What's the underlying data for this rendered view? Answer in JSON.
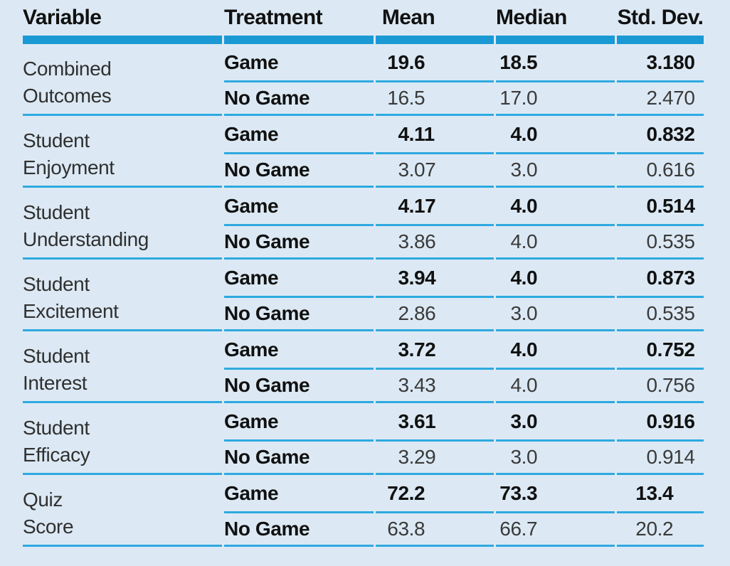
{
  "colors": {
    "background": "#dce9f4",
    "header_bar": "#1a99d5",
    "row_line": "#2ea9e0",
    "text_dark": "#111111",
    "text_regular": "#3a3a3a"
  },
  "chart_data": {
    "type": "table",
    "title": "",
    "columns": [
      "Variable",
      "Treatment",
      "Mean",
      "Median",
      "Std. Dev."
    ],
    "groups": [
      {
        "variable": "Combined Outcomes",
        "lines": [
          "Combined",
          "Outcomes"
        ],
        "game": {
          "treatment": "Game",
          "mean": "19.6",
          "median": "18.5",
          "std_dev": "3.180"
        },
        "no_game": {
          "treatment": "No Game",
          "mean": "16.5",
          "median": "17.0",
          "std_dev": "2.470"
        }
      },
      {
        "variable": "Student Enjoyment",
        "lines": [
          "Student",
          "Enjoyment"
        ],
        "game": {
          "treatment": "Game",
          "mean": "4.11",
          "median": "4.0",
          "std_dev": "0.832"
        },
        "no_game": {
          "treatment": "No Game",
          "mean": "3.07",
          "median": "3.0",
          "std_dev": "0.616"
        }
      },
      {
        "variable": "Student Understanding",
        "lines": [
          "Student",
          "Understanding"
        ],
        "game": {
          "treatment": "Game",
          "mean": "4.17",
          "median": "4.0",
          "std_dev": "0.514"
        },
        "no_game": {
          "treatment": "No Game",
          "mean": "3.86",
          "median": "4.0",
          "std_dev": "0.535"
        }
      },
      {
        "variable": "Student Excitement",
        "lines": [
          "Student",
          "Excitement"
        ],
        "game": {
          "treatment": "Game",
          "mean": "3.94",
          "median": "4.0",
          "std_dev": "0.873"
        },
        "no_game": {
          "treatment": "No Game",
          "mean": "2.86",
          "median": "3.0",
          "std_dev": "0.535"
        }
      },
      {
        "variable": "Student Interest",
        "lines": [
          "Student",
          "Interest"
        ],
        "game": {
          "treatment": "Game",
          "mean": "3.72",
          "median": "4.0",
          "std_dev": "0.752"
        },
        "no_game": {
          "treatment": "No Game",
          "mean": "3.43",
          "median": "4.0",
          "std_dev": "0.756"
        }
      },
      {
        "variable": "Student Efficacy",
        "lines": [
          "Student",
          "Efficacy"
        ],
        "game": {
          "treatment": "Game",
          "mean": "3.61",
          "median": "3.0",
          "std_dev": "0.916"
        },
        "no_game": {
          "treatment": "No Game",
          "mean": "3.29",
          "median": "3.0",
          "std_dev": "0.914"
        }
      },
      {
        "variable": "Quiz Score",
        "lines": [
          "Quiz",
          "Score"
        ],
        "game": {
          "treatment": "Game",
          "mean": "72.2",
          "median": "73.3",
          "std_dev": "13.4"
        },
        "no_game": {
          "treatment": "No Game",
          "mean": "63.8",
          "median": "66.7",
          "std_dev": "20.2"
        }
      }
    ]
  }
}
